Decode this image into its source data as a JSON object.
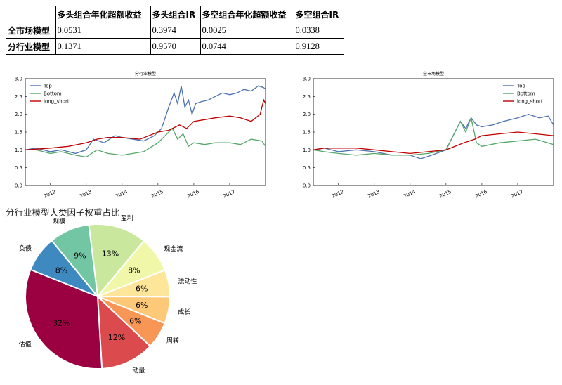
{
  "table": {
    "headers": [
      "",
      "多头组合年化超额收益",
      "多头组合IR",
      "多空组合年化超额收益",
      "多空组合IR"
    ],
    "rows": [
      {
        "label": "全市场模型",
        "values": [
          "0.0531",
          "0.3974",
          "0.0025",
          "0.0338"
        ]
      },
      {
        "label": "分行业模型",
        "values": [
          "0.1371",
          "0.9570",
          "0.0744",
          "0.9128"
        ]
      }
    ]
  },
  "pie_title": "分行业模型大类因子权重占比",
  "chart_data": [
    {
      "type": "line",
      "title": "分行业模型",
      "ylim": [
        0.0,
        3.0
      ],
      "yticks": [
        "0.0",
        "0.5",
        "1.0",
        "1.5",
        "2.0",
        "2.5",
        "3.0"
      ],
      "xlim": [
        2011.3,
        2018.0
      ],
      "xticks": [
        "2012",
        "2013",
        "2014",
        "2015",
        "2016",
        "2017"
      ],
      "legend_position": "upper-left",
      "grid": false,
      "series": [
        {
          "name": "Top",
          "color": "#4c72b0",
          "x": [
            2011.3,
            2011.6,
            2012.0,
            2012.3,
            2012.7,
            2013.0,
            2013.2,
            2013.5,
            2013.8,
            2014.0,
            2014.3,
            2014.6,
            2014.9,
            2015.1,
            2015.3,
            2015.45,
            2015.55,
            2015.65,
            2015.75,
            2015.85,
            2015.95,
            2016.05,
            2016.2,
            2016.4,
            2016.6,
            2016.8,
            2017.0,
            2017.2,
            2017.4,
            2017.6,
            2017.8,
            2017.95,
            2018.0
          ],
          "y": [
            1.0,
            1.05,
            0.95,
            1.0,
            0.9,
            1.0,
            1.3,
            1.2,
            1.4,
            1.35,
            1.3,
            1.25,
            1.4,
            1.6,
            2.2,
            2.6,
            2.3,
            2.8,
            2.2,
            2.4,
            2.0,
            2.3,
            2.35,
            2.4,
            2.5,
            2.6,
            2.55,
            2.6,
            2.7,
            2.65,
            2.8,
            2.75,
            2.7
          ]
        },
        {
          "name": "Bottom",
          "color": "#55a868",
          "x": [
            2011.3,
            2011.6,
            2012.0,
            2012.3,
            2012.7,
            2013.0,
            2013.3,
            2013.6,
            2014.0,
            2014.3,
            2014.6,
            2015.0,
            2015.2,
            2015.4,
            2015.55,
            2015.7,
            2015.85,
            2016.0,
            2016.3,
            2016.6,
            2017.0,
            2017.3,
            2017.6,
            2017.9,
            2018.0
          ],
          "y": [
            1.0,
            1.0,
            0.9,
            0.95,
            0.85,
            0.8,
            1.0,
            0.9,
            0.85,
            0.9,
            0.95,
            1.2,
            1.4,
            1.6,
            1.3,
            1.45,
            1.1,
            1.2,
            1.15,
            1.2,
            1.2,
            1.15,
            1.3,
            1.25,
            1.1
          ]
        },
        {
          "name": "long_short",
          "color": "#c00000",
          "x": [
            2011.3,
            2011.6,
            2012.0,
            2012.5,
            2013.0,
            2013.3,
            2013.6,
            2014.0,
            2014.5,
            2015.0,
            2015.3,
            2015.6,
            2015.8,
            2016.0,
            2016.3,
            2016.6,
            2017.0,
            2017.3,
            2017.6,
            2017.85,
            2017.95,
            2018.0
          ],
          "y": [
            1.0,
            1.02,
            1.05,
            1.1,
            1.2,
            1.3,
            1.35,
            1.35,
            1.3,
            1.5,
            1.55,
            1.7,
            1.6,
            1.8,
            1.85,
            1.9,
            1.95,
            1.9,
            1.8,
            2.0,
            2.4,
            2.3
          ]
        }
      ]
    },
    {
      "type": "line",
      "title": "全市场模型",
      "ylim": [
        0.0,
        3.0
      ],
      "yticks": [
        "0.0",
        "0.5",
        "1.0",
        "1.5",
        "2.0",
        "2.5",
        "3.0"
      ],
      "xlim": [
        2011.3,
        2018.0
      ],
      "xticks": [
        "2012",
        "2013",
        "2014",
        "2015",
        "2016",
        "2017"
      ],
      "legend_position": "upper-right",
      "grid": false,
      "series": [
        {
          "name": "Top",
          "color": "#4c72b0",
          "x": [
            2011.3,
            2011.6,
            2012.0,
            2012.5,
            2013.0,
            2013.5,
            2014.0,
            2014.3,
            2014.6,
            2015.0,
            2015.2,
            2015.4,
            2015.55,
            2015.7,
            2015.85,
            2016.0,
            2016.3,
            2016.6,
            2017.0,
            2017.3,
            2017.6,
            2017.85,
            2018.0
          ],
          "y": [
            1.0,
            1.05,
            0.95,
            1.0,
            0.95,
            0.85,
            0.85,
            0.75,
            0.85,
            1.0,
            1.4,
            1.8,
            1.6,
            1.9,
            1.7,
            1.65,
            1.7,
            1.8,
            1.9,
            2.0,
            1.9,
            1.95,
            1.7
          ]
        },
        {
          "name": "Bottom",
          "color": "#55a868",
          "x": [
            2011.3,
            2011.6,
            2012.0,
            2012.5,
            2013.0,
            2013.5,
            2014.0,
            2014.5,
            2015.0,
            2015.2,
            2015.4,
            2015.55,
            2015.7,
            2015.85,
            2016.0,
            2016.5,
            2017.0,
            2017.5,
            2018.0
          ],
          "y": [
            1.0,
            0.95,
            0.9,
            0.85,
            0.9,
            0.85,
            0.85,
            0.9,
            1.0,
            1.4,
            1.8,
            1.5,
            1.9,
            1.2,
            1.1,
            1.2,
            1.25,
            1.3,
            1.15
          ]
        },
        {
          "name": "long_short",
          "color": "#c00000",
          "x": [
            2011.3,
            2011.6,
            2012.0,
            2012.5,
            2013.0,
            2013.5,
            2014.0,
            2014.5,
            2015.0,
            2015.5,
            2015.8,
            2016.0,
            2016.5,
            2017.0,
            2017.5,
            2018.0
          ],
          "y": [
            1.0,
            1.05,
            1.05,
            1.05,
            1.0,
            0.95,
            0.9,
            0.95,
            1.0,
            1.2,
            1.3,
            1.4,
            1.45,
            1.5,
            1.45,
            1.4
          ]
        }
      ]
    },
    {
      "type": "pie",
      "title": "分行业模型大类因子权重占比",
      "categories": [
        "盈利",
        "现金流",
        "流动性",
        "成长",
        "周转",
        "动量",
        "估值",
        "负债",
        "规模"
      ],
      "values": [
        13,
        8,
        6,
        6,
        6,
        12,
        32,
        8,
        9
      ],
      "labels": [
        "13%",
        "8%",
        "6%",
        "6%",
        "6%",
        "12%",
        "32%",
        "8%",
        "9%"
      ],
      "colors": [
        "#c9e89d",
        "#f1f7a9",
        "#fde59a",
        "#fdc978",
        "#f89656",
        "#db4a4d",
        "#9b0141",
        "#3d89c0",
        "#73c6a4"
      ]
    }
  ]
}
